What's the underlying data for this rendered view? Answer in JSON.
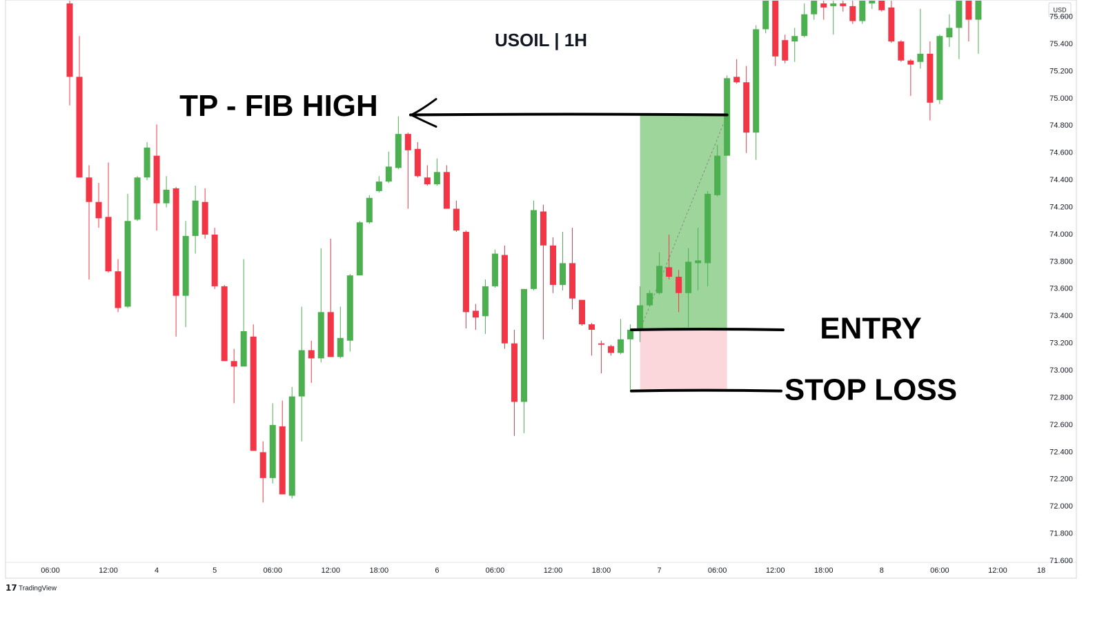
{
  "chart_data": {
    "type": "candlestick",
    "title": "USOIL | 1H",
    "currency_label": "USD",
    "watermark": "TradingView",
    "up_color": "#4caf50",
    "down_color": "#f23645",
    "ylim": [
      71.59,
      75.725
    ],
    "yticks": [
      {
        "value": 71.6,
        "label": "71.600"
      },
      {
        "value": 71.8,
        "label": "71.800"
      },
      {
        "value": 72,
        "label": "72.000"
      },
      {
        "value": 72.2,
        "label": "72.200"
      },
      {
        "value": 72.4,
        "label": "72.400"
      },
      {
        "value": 72.6,
        "label": "72.600"
      },
      {
        "value": 72.8,
        "label": "72.800"
      },
      {
        "value": 73,
        "label": "73.000"
      },
      {
        "value": 73.2,
        "label": "73.200"
      },
      {
        "value": 73.4,
        "label": "73.400"
      },
      {
        "value": 73.6,
        "label": "73.600"
      },
      {
        "value": 73.8,
        "label": "73.800"
      },
      {
        "value": 74,
        "label": "74.000"
      },
      {
        "value": 74.2,
        "label": "74.200"
      },
      {
        "value": 74.4,
        "label": "74.400"
      },
      {
        "value": 74.6,
        "label": "74.600"
      },
      {
        "value": 74.8,
        "label": "74.800"
      },
      {
        "value": 75,
        "label": "75.000"
      },
      {
        "value": 75.2,
        "label": "75.200"
      },
      {
        "value": 75.4,
        "label": "75.400"
      },
      {
        "value": 75.6,
        "label": "75.600"
      }
    ],
    "xlim": [
      -6.64,
      100.93
    ],
    "xticks": [
      {
        "value": -2,
        "label": "06:00"
      },
      {
        "value": 4,
        "label": "12:00"
      },
      {
        "value": 9,
        "label": "4"
      },
      {
        "value": 15,
        "label": "5"
      },
      {
        "value": 21,
        "label": "06:00"
      },
      {
        "value": 27,
        "label": "12:00"
      },
      {
        "value": 32,
        "label": "18:00"
      },
      {
        "value": 38,
        "label": "6"
      },
      {
        "value": 44,
        "label": "06:00"
      },
      {
        "value": 50,
        "label": "12:00"
      },
      {
        "value": 55,
        "label": "18:00"
      },
      {
        "value": 61,
        "label": "7"
      },
      {
        "value": 67,
        "label": "06:00"
      },
      {
        "value": 73,
        "label": "12:00"
      },
      {
        "value": 78,
        "label": "18:00"
      },
      {
        "value": 84,
        "label": "8"
      },
      {
        "value": 90,
        "label": "06:00"
      },
      {
        "value": 96,
        "label": "12:00"
      },
      {
        "value": 100.5,
        "label": "18"
      }
    ],
    "open": [
      75.7,
      75.16,
      74.42,
      74.24,
      74.13,
      73.73,
      73.47,
      74.11,
      74.42,
      74.58,
      74.23,
      74.34,
      73.55,
      73.99,
      74.24,
      74.0,
      73.62,
      73.07,
      73.03,
      73.25,
      72.4,
      72.21,
      72.59,
      72.08,
      72.81,
      73.15,
      73.09,
      73.43,
      73.1,
      73.22,
      73.7,
      74.09,
      74.32,
      74.39,
      74.49,
      74.74,
      74.63,
      74.42,
      74.37,
      74.46,
      74.19,
      74.02,
      73.44,
      73.4,
      73.62,
      73.85,
      73.2,
      72.77,
      73.6,
      74.17,
      73.92,
      73.63,
      73.79,
      73.52,
      73.34,
      73.2,
      73.18,
      73.13,
      73.23,
      73.3,
      73.48,
      73.57,
      73.76,
      73.69,
      73.57,
      73.79,
      73.79,
      74.29,
      74.58,
      75.16,
      75.12,
      74.75,
      75.51,
      75.72,
      75.43,
      75.42,
      75.46,
      75.62,
      75.7,
      75.68,
      75.7,
      75.68,
      75.57,
      75.7,
      75.72,
      75.67,
      75.42,
      75.28,
      75.27,
      75.33,
      74.99,
      75.45,
      75.52,
      75.72,
      75.58
    ],
    "high": [
      75.72,
      75.46,
      74.51,
      74.38,
      74.53,
      73.82,
      74.3,
      74.43,
      74.68,
      74.81,
      74.43,
      74.35,
      74.1,
      74.36,
      74.34,
      74.05,
      73.63,
      73.16,
      73.82,
      73.34,
      72.48,
      72.76,
      72.78,
      72.88,
      73.47,
      73.22,
      73.9,
      73.97,
      73.47,
      73.71,
      74.1,
      74.29,
      74.43,
      74.61,
      74.87,
      74.75,
      74.68,
      74.51,
      74.56,
      74.51,
      74.25,
      74.03,
      73.49,
      73.67,
      73.89,
      73.92,
      73.3,
      73.6,
      74.25,
      74.22,
      73.98,
      74.02,
      74.05,
      73.52,
      73.35,
      73.22,
      73.19,
      73.38,
      73.34,
      73.62,
      73.59,
      73.87,
      74.0,
      73.74,
      73.9,
      74.05,
      74.32,
      74.66,
      75.17,
      75.29,
      75.24,
      75.54,
      75.72,
      75.72,
      75.47,
      75.52,
      75.7,
      75.72,
      75.72,
      75.72,
      75.72,
      75.72,
      75.72,
      75.72,
      75.72,
      75.72,
      75.43,
      75.29,
      75.66,
      75.42,
      75.47,
      75.62,
      75.72,
      75.72,
      75.72
    ],
    "low": [
      74.95,
      74.42,
      73.67,
      74.05,
      73.72,
      73.43,
      73.46,
      74.1,
      74.4,
      74.03,
      74.2,
      73.25,
      73.32,
      73.86,
      73.97,
      73.6,
      73.07,
      72.76,
      73.03,
      72.41,
      72.03,
      72.17,
      72.09,
      72.06,
      72.48,
      72.91,
      73.06,
      73.1,
      73.09,
      73.14,
      73.7,
      74.08,
      74.31,
      74.38,
      74.48,
      74.19,
      74.42,
      74.36,
      74.36,
      74.19,
      74.02,
      73.31,
      73.3,
      73.27,
      73.61,
      73.16,
      72.52,
      72.54,
      73.59,
      73.23,
      73.57,
      73.59,
      73.45,
      73.33,
      73.11,
      72.98,
      73.11,
      73.12,
      72.86,
      73.21,
      73.47,
      73.56,
      73.67,
      73.43,
      73.32,
      73.59,
      73.62,
      74.28,
      74.58,
      75.11,
      74.6,
      74.55,
      75.48,
      75.24,
      75.26,
      75.27,
      75.45,
      75.58,
      75.58,
      75.47,
      75.64,
      75.55,
      75.55,
      75.66,
      75.64,
      75.41,
      75.27,
      75.02,
      75.22,
      74.84,
      74.96,
      75.38,
      75.29,
      75.42,
      75.33
    ],
    "close": [
      75.16,
      74.42,
      74.24,
      74.12,
      73.73,
      73.46,
      74.1,
      74.42,
      74.64,
      74.23,
      74.33,
      73.55,
      73.99,
      74.25,
      74.0,
      73.62,
      73.07,
      73.03,
      73.29,
      72.41,
      72.21,
      72.6,
      72.09,
      72.81,
      73.15,
      73.09,
      73.43,
      73.1,
      73.24,
      73.7,
      74.09,
      74.27,
      74.39,
      74.5,
      74.74,
      74.62,
      74.43,
      74.37,
      74.46,
      74.19,
      74.03,
      73.43,
      73.39,
      73.62,
      73.86,
      73.2,
      72.77,
      73.6,
      74.18,
      73.92,
      73.63,
      73.79,
      73.53,
      73.34,
      73.3,
      73.19,
      73.13,
      73.23,
      73.3,
      73.48,
      73.57,
      73.77,
      73.69,
      73.57,
      73.8,
      73.81,
      74.3,
      74.58,
      75.15,
      75.12,
      74.75,
      75.51,
      75.72,
      75.31,
      75.28,
      75.46,
      75.62,
      75.72,
      75.67,
      75.7,
      75.68,
      75.57,
      75.72,
      75.72,
      75.65,
      75.42,
      75.28,
      75.25,
      75.33,
      74.97,
      75.46,
      75.52,
      75.72,
      75.58,
      75.72
    ],
    "position": {
      "start": 59,
      "end": 68,
      "entry": 73.3,
      "take_profit": 74.88,
      "stop_loss": 72.85,
      "profit_color": "#9dd59a",
      "loss_color": "#fbd7dc"
    },
    "annotations": [
      {
        "text": "TP - FIB HIGH",
        "value": 74.88
      },
      {
        "text": "ENTRY",
        "value": 73.3
      },
      {
        "text": "STOP LOSS",
        "value": 72.85
      }
    ]
  }
}
